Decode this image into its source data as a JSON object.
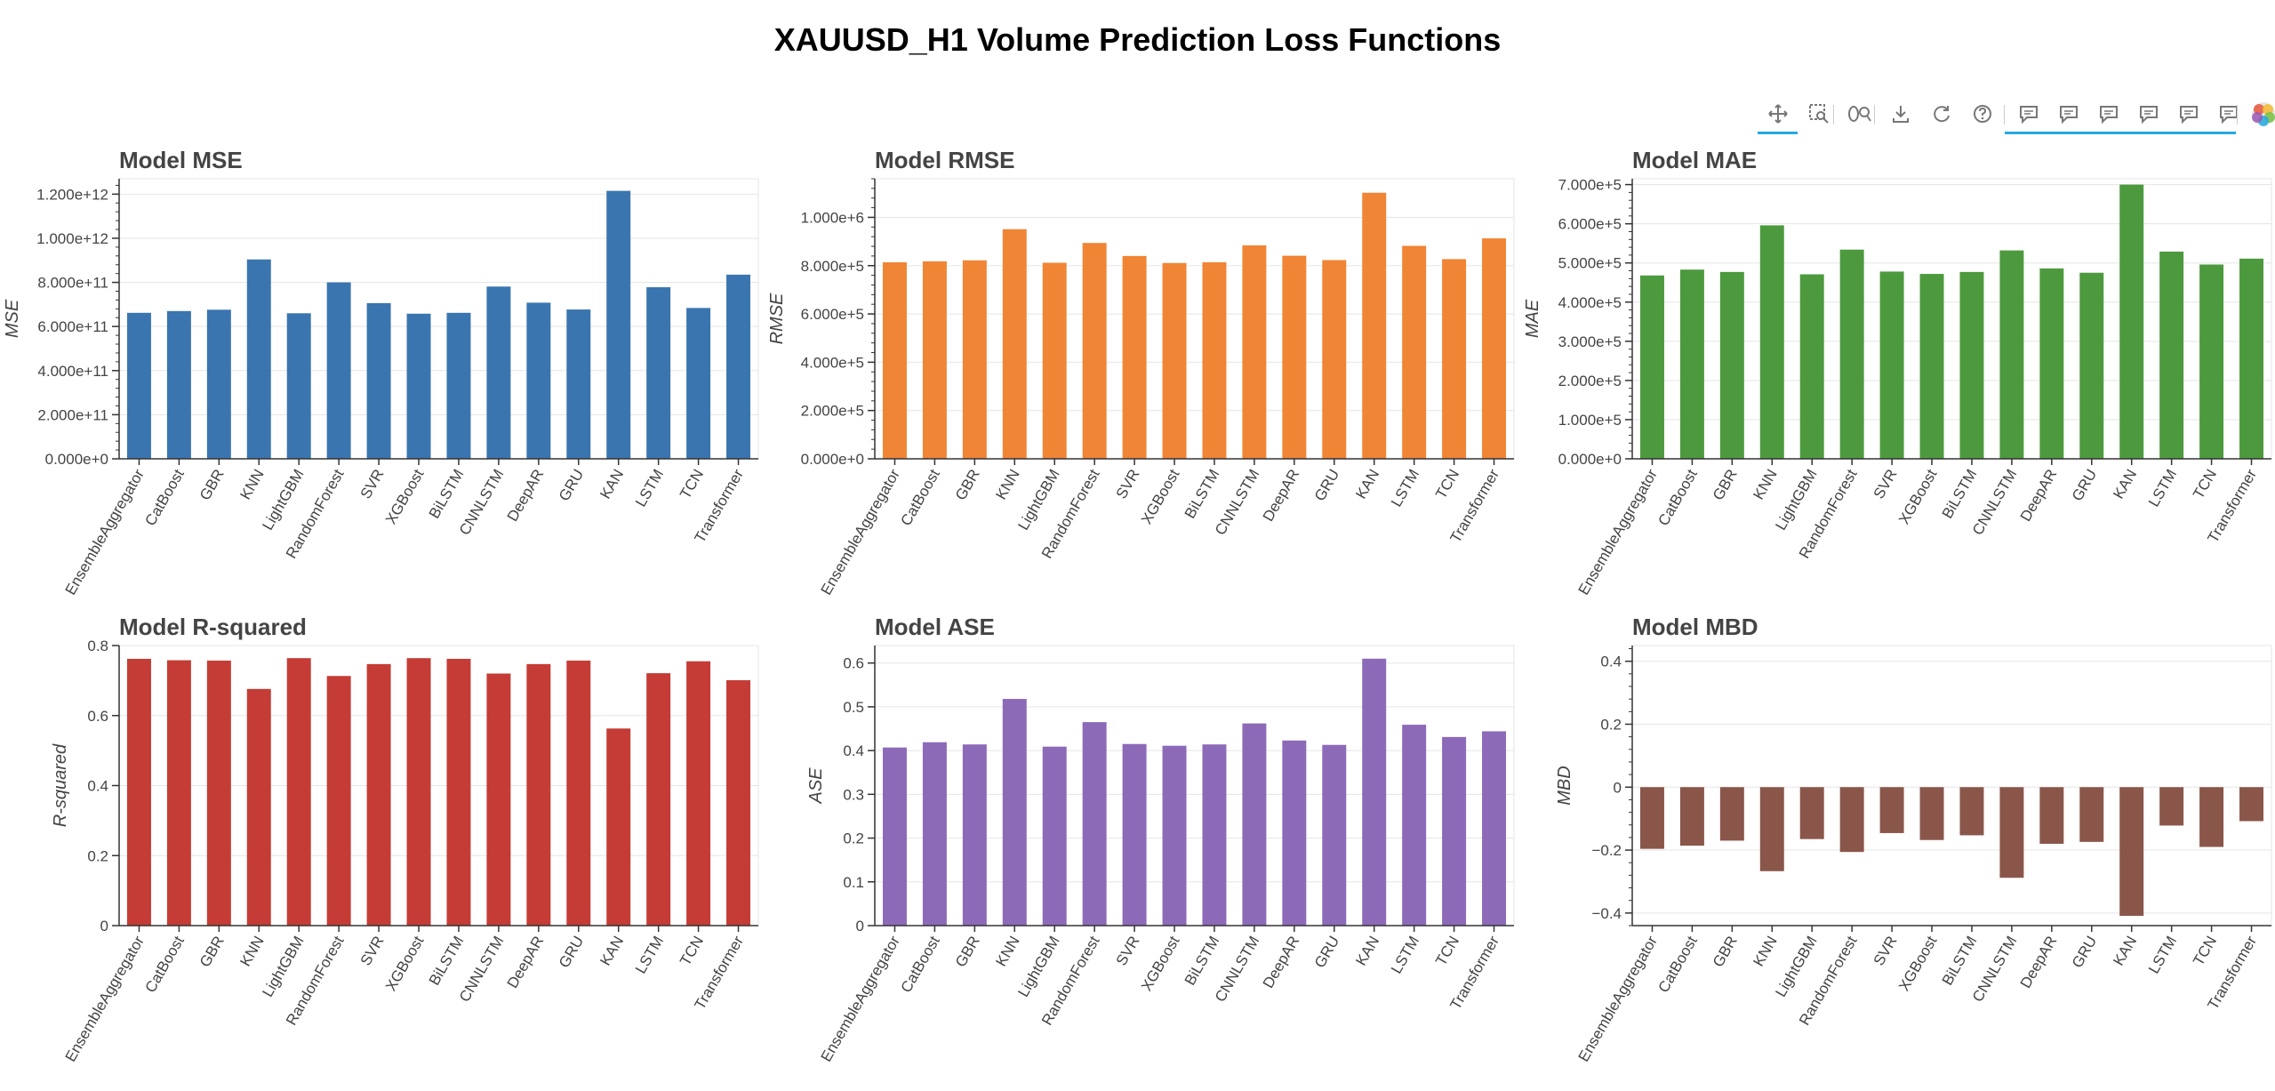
{
  "page": {
    "title": "XAUUSD_H1 Volume Prediction Loss Functions"
  },
  "toolbar": {
    "tools": [
      {
        "name": "pan-tool",
        "icon": "pan-icon",
        "active": true
      },
      {
        "name": "box-zoom-tool",
        "icon": "box-zoom-icon",
        "active": false
      },
      {
        "name": "wheel-zoom-tool",
        "icon": "wheel-zoom-icon",
        "active": false
      },
      {
        "name": "save-tool",
        "icon": "save-icon",
        "active": false
      },
      {
        "name": "reset-tool",
        "icon": "reset-icon",
        "active": false
      },
      {
        "name": "help-tool",
        "icon": "help-icon",
        "active": false
      },
      {
        "name": "hover-tool-1",
        "icon": "hover-icon",
        "active": true
      },
      {
        "name": "hover-tool-2",
        "icon": "hover-icon",
        "active": true
      },
      {
        "name": "hover-tool-3",
        "icon": "hover-icon",
        "active": true
      },
      {
        "name": "hover-tool-4",
        "icon": "hover-icon",
        "active": true
      },
      {
        "name": "hover-tool-5",
        "icon": "hover-icon",
        "active": true
      },
      {
        "name": "hover-tool-6",
        "icon": "hover-icon",
        "active": true
      },
      {
        "name": "bokeh-logo",
        "icon": "bokeh-logo-icon",
        "active": false
      }
    ]
  },
  "chart_data": [
    {
      "type": "bar",
      "title": "Model MSE",
      "xlabel": "",
      "ylabel": "MSE",
      "color": "#3a75b0",
      "ylim": [
        0,
        1270000000000.0
      ],
      "tick_values": [
        0,
        200000000000.0,
        400000000000.0,
        600000000000.0,
        800000000000.0,
        1000000000000.0,
        1200000000000.0
      ],
      "tick_labels": [
        "0.000e+0",
        "2.000e+11",
        "4.000e+11",
        "6.000e+11",
        "8.000e+11",
        "1.000e+12",
        "1.200e+12"
      ],
      "minor_ticks": true,
      "categories": [
        "EnsembleAggregator",
        "CatBoost",
        "GBR",
        "KNN",
        "LightGBM",
        "RandomForest",
        "SVR",
        "XGBoost",
        "BiLSTM",
        "CNNLSTM",
        "DeepAR",
        "GRU",
        "KAN",
        "LSTM",
        "TCN",
        "Transformer"
      ],
      "values": [
        662000000000.0,
        670000000000.0,
        676000000000.0,
        904000000000.0,
        660000000000.0,
        800000000000.0,
        706000000000.0,
        658000000000.0,
        662000000000.0,
        781000000000.0,
        708000000000.0,
        677000000000.0,
        1215000000000.0,
        778000000000.0,
        684000000000.0,
        835000000000.0
      ]
    },
    {
      "type": "bar",
      "title": "Model RMSE",
      "xlabel": "",
      "ylabel": "RMSE",
      "color": "#f08535",
      "ylim": [
        0,
        1160000.0
      ],
      "tick_values": [
        0,
        200000.0,
        400000.0,
        600000.0,
        800000.0,
        1000000.0
      ],
      "tick_labels": [
        "0.000e+0",
        "2.000e+5",
        "4.000e+5",
        "6.000e+5",
        "8.000e+5",
        "1.000e+6"
      ],
      "minor_ticks": true,
      "categories": [
        "EnsembleAggregator",
        "CatBoost",
        "GBR",
        "KNN",
        "LightGBM",
        "RandomForest",
        "SVR",
        "XGBoost",
        "BiLSTM",
        "CNNLSTM",
        "DeepAR",
        "GRU",
        "KAN",
        "LSTM",
        "TCN",
        "Transformer"
      ],
      "values": [
        814000.0,
        818000.0,
        822000.0,
        951000.0,
        812000.0,
        894000.0,
        840000.0,
        811000.0,
        814000.0,
        884000.0,
        841000.0,
        823000.0,
        1102000.0,
        882000.0,
        827000.0,
        913000.0
      ]
    },
    {
      "type": "bar",
      "title": "Model MAE",
      "xlabel": "",
      "ylabel": "MAE",
      "color": "#4d9a3e",
      "ylim": [
        0,
        715000.0
      ],
      "tick_values": [
        0,
        100000.0,
        200000.0,
        300000.0,
        400000.0,
        500000.0,
        600000.0,
        700000.0
      ],
      "tick_labels": [
        "0.000e+0",
        "1.000e+5",
        "2.000e+5",
        "3.000e+5",
        "4.000e+5",
        "5.000e+5",
        "6.000e+5",
        "7.000e+5"
      ],
      "minor_ticks": true,
      "categories": [
        "EnsembleAggregator",
        "CatBoost",
        "GBR",
        "KNN",
        "LightGBM",
        "RandomForest",
        "SVR",
        "XGBoost",
        "BiLSTM",
        "CNNLSTM",
        "DeepAR",
        "GRU",
        "KAN",
        "LSTM",
        "TCN",
        "Transformer"
      ],
      "values": [
        468000.0,
        483000.0,
        477000.0,
        596000.0,
        471000.0,
        534000.0,
        478000.0,
        472000.0,
        477000.0,
        532000.0,
        486000.0,
        475000.0,
        700000.0,
        529000.0,
        496000.0,
        511000.0
      ]
    },
    {
      "type": "bar",
      "title": "Model R-squared",
      "xlabel": "",
      "ylabel": "R-squared",
      "color": "#c43c35",
      "ylim": [
        0,
        0.8
      ],
      "tick_values": [
        0,
        0.2,
        0.4,
        0.6,
        0.8
      ],
      "tick_labels": [
        "0",
        "0.2",
        "0.4",
        "0.6",
        "0.8"
      ],
      "minor_ticks": false,
      "categories": [
        "EnsembleAggregator",
        "CatBoost",
        "GBR",
        "KNN",
        "LightGBM",
        "RandomForest",
        "SVR",
        "XGBoost",
        "BiLSTM",
        "CNNLSTM",
        "DeepAR",
        "GRU",
        "KAN",
        "LSTM",
        "TCN",
        "Transformer"
      ],
      "values": [
        0.762,
        0.758,
        0.757,
        0.676,
        0.764,
        0.713,
        0.747,
        0.764,
        0.762,
        0.72,
        0.747,
        0.757,
        0.563,
        0.721,
        0.755,
        0.701
      ]
    },
    {
      "type": "bar",
      "title": "Model ASE",
      "xlabel": "",
      "ylabel": "ASE",
      "color": "#8c6ab8",
      "ylim": [
        0,
        0.64
      ],
      "tick_values": [
        0,
        0.1,
        0.2,
        0.3,
        0.4,
        0.5,
        0.6
      ],
      "tick_labels": [
        "0",
        "0.1",
        "0.2",
        "0.3",
        "0.4",
        "0.5",
        "0.6"
      ],
      "minor_ticks": false,
      "categories": [
        "EnsembleAggregator",
        "CatBoost",
        "GBR",
        "KNN",
        "LightGBM",
        "RandomForest",
        "SVR",
        "XGBoost",
        "BiLSTM",
        "CNNLSTM",
        "DeepAR",
        "GRU",
        "KAN",
        "LSTM",
        "TCN",
        "Transformer"
      ],
      "values": [
        0.407,
        0.419,
        0.414,
        0.518,
        0.409,
        0.465,
        0.415,
        0.411,
        0.414,
        0.462,
        0.423,
        0.413,
        0.61,
        0.459,
        0.431,
        0.444
      ]
    },
    {
      "type": "bar",
      "title": "Model MBD",
      "xlabel": "",
      "ylabel": "MBD",
      "color": "#8a564a",
      "ylim": [
        -0.44,
        0.45
      ],
      "tick_values": [
        -0.4,
        -0.2,
        0,
        0.2,
        0.4
      ],
      "tick_labels": [
        "−0.4",
        "−0.2",
        "0",
        "0.2",
        "0.4"
      ],
      "minor_ticks": true,
      "categories": [
        "EnsembleAggregator",
        "CatBoost",
        "GBR",
        "KNN",
        "LightGBM",
        "RandomForest",
        "SVR",
        "XGBoost",
        "BiLSTM",
        "CNNLSTM",
        "DeepAR",
        "GRU",
        "KAN",
        "LSTM",
        "TCN",
        "Transformer"
      ],
      "values": [
        -0.196,
        -0.186,
        -0.17,
        -0.267,
        -0.165,
        -0.206,
        -0.146,
        -0.168,
        -0.153,
        -0.288,
        -0.18,
        -0.174,
        -0.409,
        -0.122,
        -0.19,
        -0.108
      ]
    }
  ]
}
